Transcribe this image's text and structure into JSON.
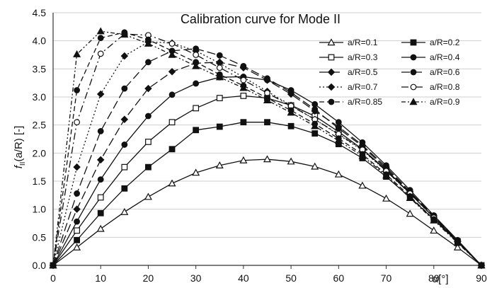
{
  "chart_data": {
    "type": "line",
    "title": "Calibration curve for Mode II",
    "xlabel": "α[°]",
    "ylabel": "fII(a/R) [-]",
    "ylabel_parts": {
      "main": "f",
      "sub": "II",
      "tail": "(a/R) [-]"
    },
    "xlim": [
      0,
      90
    ],
    "ylim": [
      0,
      4.5
    ],
    "x_ticks": [
      "0",
      "10",
      "20",
      "30",
      "40",
      "50",
      "60",
      "70",
      "80",
      "90"
    ],
    "y_ticks": [
      "0.0",
      "0.5",
      "1.0",
      "1.5",
      "2.0",
      "2.5",
      "3.0",
      "3.5",
      "4.0",
      "4.5"
    ],
    "grid": "horizontal",
    "legend_position": "top-right",
    "x": [
      0,
      5,
      10,
      15,
      20,
      25,
      30,
      35,
      40,
      45,
      50,
      55,
      60,
      65,
      70,
      75,
      80,
      85,
      90
    ],
    "series": [
      {
        "name": "a/R=0.1",
        "marker": "triangle-open",
        "dash": "solid",
        "values": [
          0,
          0.32,
          0.65,
          0.95,
          1.22,
          1.46,
          1.65,
          1.78,
          1.87,
          1.89,
          1.85,
          1.76,
          1.62,
          1.42,
          1.19,
          0.92,
          0.62,
          0.32,
          0
        ]
      },
      {
        "name": "a/R=0.2",
        "marker": "square-filled",
        "dash": "solid",
        "values": [
          0,
          0.45,
          0.93,
          1.37,
          1.75,
          2.07,
          2.41,
          2.47,
          2.55,
          2.55,
          2.48,
          2.35,
          2.16,
          1.91,
          1.58,
          1.21,
          0.82,
          0.42,
          0
        ]
      },
      {
        "name": "a/R=0.3",
        "marker": "square-open",
        "dash": "solid",
        "values": [
          0,
          0.62,
          1.21,
          1.75,
          2.2,
          2.55,
          2.8,
          2.98,
          3.02,
          2.98,
          2.85,
          2.66,
          2.38,
          2.07,
          1.7,
          1.28,
          0.86,
          0.43,
          0
        ]
      },
      {
        "name": "a/R=0.4",
        "marker": "circle-filled",
        "dash": "solid",
        "values": [
          0,
          0.78,
          1.53,
          2.15,
          2.66,
          3.04,
          3.24,
          3.35,
          3.36,
          3.3,
          3.12,
          2.87,
          2.55,
          2.19,
          1.78,
          1.34,
          0.89,
          0.45,
          0
        ]
      },
      {
        "name": "a/R=0.5",
        "marker": "diamond-filled",
        "dash": "longdash",
        "values": [
          0,
          1.0,
          1.88,
          2.6,
          3.15,
          3.45,
          3.6,
          3.62,
          3.52,
          3.3,
          3.05,
          2.75,
          2.47,
          2.14,
          1.75,
          1.31,
          0.88,
          0.43,
          0
        ]
      },
      {
        "name": "a/R=0.6",
        "marker": "circle-filled",
        "dash": "longdash",
        "values": [
          0,
          1.28,
          2.39,
          3.15,
          3.62,
          3.82,
          3.86,
          3.74,
          3.55,
          3.33,
          3.08,
          2.78,
          2.44,
          2.12,
          1.72,
          1.3,
          0.86,
          0.43,
          0
        ]
      },
      {
        "name": "a/R=0.7",
        "marker": "diamond-filled",
        "dash": "dotted",
        "values": [
          0,
          1.75,
          3.05,
          3.73,
          3.98,
          3.96,
          3.82,
          3.6,
          3.35,
          3.1,
          2.85,
          2.6,
          2.33,
          2.05,
          1.68,
          1.28,
          0.85,
          0.42,
          0
        ]
      },
      {
        "name": "a/R=0.8",
        "marker": "circle-open",
        "dash": "dashdot",
        "values": [
          0,
          2.55,
          3.77,
          4.12,
          4.1,
          3.95,
          3.75,
          3.52,
          3.3,
          3.07,
          2.84,
          2.6,
          2.34,
          2.06,
          1.68,
          1.28,
          0.85,
          0.42,
          0
        ]
      },
      {
        "name": "a/R=0.85",
        "marker": "circle-filled",
        "dash": "dashed",
        "values": [
          0,
          3.12,
          4.05,
          4.15,
          4.02,
          3.82,
          3.62,
          3.4,
          3.2,
          2.98,
          2.76,
          2.52,
          2.26,
          1.98,
          1.62,
          1.23,
          0.82,
          0.41,
          0
        ]
      },
      {
        "name": "a/R=0.9",
        "marker": "triangle-filled",
        "dash": "dashdotdot",
        "values": [
          0,
          3.76,
          4.17,
          4.11,
          3.95,
          3.75,
          3.55,
          3.35,
          3.16,
          2.94,
          2.72,
          2.48,
          2.22,
          1.95,
          1.6,
          1.2,
          0.8,
          0.4,
          0
        ]
      }
    ]
  }
}
